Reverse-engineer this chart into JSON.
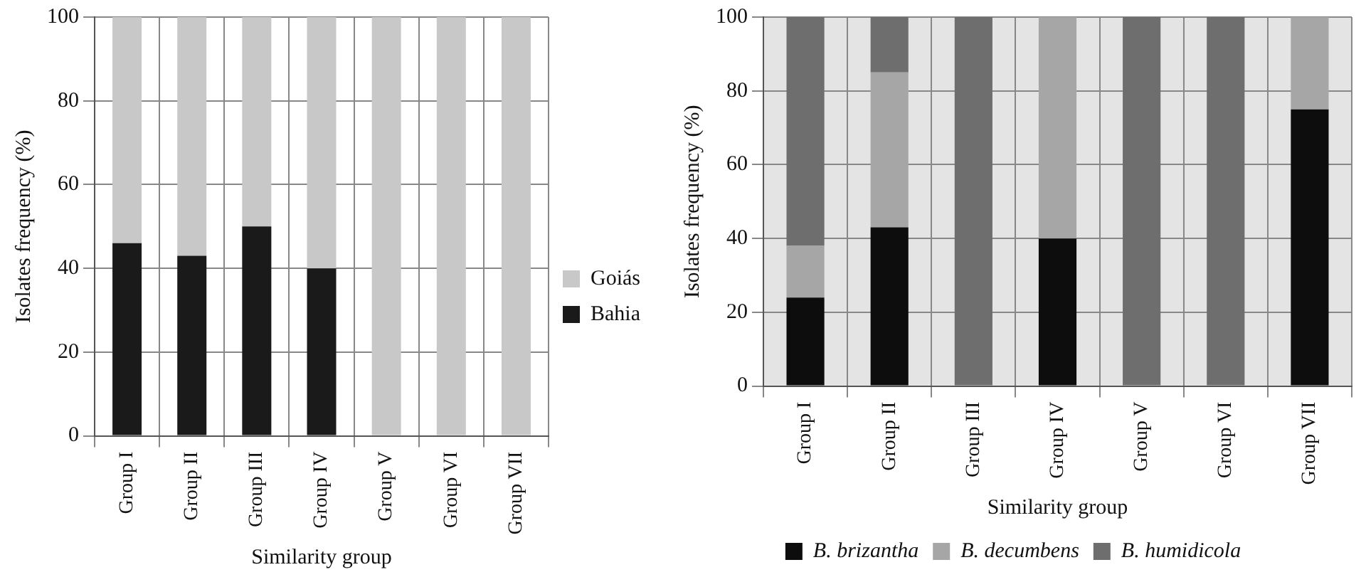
{
  "chart_data": [
    {
      "type": "bar",
      "stacked": true,
      "xlabel": "Similarity group",
      "ylabel": "Isolates frequency (%)",
      "categories": [
        "Group I",
        "Group II",
        "Group III",
        "Group IV",
        "Group V",
        "Group VI",
        "Group VII"
      ],
      "series": [
        {
          "name": "Bahia",
          "color": "#1a1a1a",
          "values": [
            46,
            43,
            50,
            40,
            0,
            0,
            0
          ]
        },
        {
          "name": "Goiás",
          "color": "#c8c8c8",
          "values": [
            54,
            57,
            50,
            60,
            100,
            100,
            100
          ]
        }
      ],
      "ylim": [
        0,
        100
      ],
      "yticks": [
        0,
        20,
        40,
        60,
        80,
        100
      ],
      "grid": true,
      "legend": "right"
    },
    {
      "type": "bar",
      "stacked": true,
      "xlabel": "Similarity group",
      "ylabel": "Isolates frequency (%)",
      "categories": [
        "Group I",
        "Group II",
        "Group III",
        "Group IV",
        "Group V",
        "Group VI",
        "Group VII"
      ],
      "series": [
        {
          "name": "B. brizantha",
          "color": "#0d0d0d",
          "values": [
            24,
            43,
            0,
            40,
            0,
            0,
            75
          ]
        },
        {
          "name": "B. decumbens",
          "color": "#a6a6a6",
          "values": [
            14,
            42,
            0,
            60,
            0,
            0,
            25
          ]
        },
        {
          "name": "B. humidicola",
          "color": "#6e6e6e",
          "values": [
            62,
            15,
            100,
            0,
            100,
            100,
            0
          ]
        }
      ],
      "ylim": [
        0,
        100
      ],
      "yticks": [
        0,
        20,
        40,
        60,
        80,
        100
      ],
      "grid": true,
      "legend": "bottom"
    }
  ]
}
